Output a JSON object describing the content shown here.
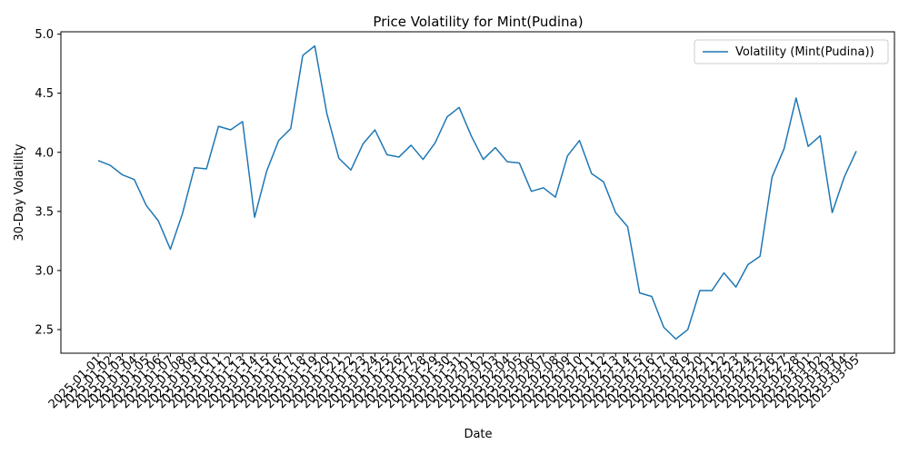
{
  "chart_data": {
    "type": "line",
    "title": "Price Volatility for Mint(Pudina)",
    "xlabel": "Date",
    "ylabel": "30-Day Volatility",
    "ylim": [
      2.3,
      5.02
    ],
    "yticks": [
      "2.5",
      "3.0",
      "3.5",
      "4.0",
      "4.5",
      "5.0"
    ],
    "grid": false,
    "legend_position": "top-right",
    "colors": {
      "series": "#1f77b4"
    },
    "x": [
      "2025-01-01",
      "2025-01-02",
      "2025-01-03",
      "2025-01-04",
      "2025-01-05",
      "2025-01-06",
      "2025-01-07",
      "2025-01-08",
      "2025-01-09",
      "2025-01-10",
      "2025-01-11",
      "2025-01-12",
      "2025-01-13",
      "2025-01-14",
      "2025-01-15",
      "2025-01-16",
      "2025-01-17",
      "2025-01-18",
      "2025-01-19",
      "2025-01-20",
      "2025-01-21",
      "2025-01-22",
      "2025-01-23",
      "2025-01-24",
      "2025-01-25",
      "2025-01-26",
      "2025-01-27",
      "2025-01-28",
      "2025-01-29",
      "2025-01-30",
      "2025-01-31",
      "2025-02-01",
      "2025-02-02",
      "2025-02-03",
      "2025-02-04",
      "2025-02-05",
      "2025-02-06",
      "2025-02-07",
      "2025-02-08",
      "2025-02-09",
      "2025-02-10",
      "2025-02-11",
      "2025-02-12",
      "2025-02-13",
      "2025-02-14",
      "2025-02-15",
      "2025-02-16",
      "2025-02-17",
      "2025-02-18",
      "2025-02-19",
      "2025-02-20",
      "2025-02-21",
      "2025-02-22",
      "2025-02-23",
      "2025-02-24",
      "2025-02-25",
      "2025-02-26",
      "2025-02-27",
      "2025-02-28",
      "2025-03-01",
      "2025-03-02",
      "2025-03-03",
      "2025-03-04",
      "2025-03-05"
    ],
    "series": [
      {
        "name": "Volatility (Mint(Pudina))",
        "values": [
          3.93,
          3.89,
          3.81,
          3.77,
          3.55,
          3.42,
          3.18,
          3.48,
          3.87,
          3.86,
          4.22,
          4.19,
          4.26,
          3.45,
          3.84,
          4.1,
          4.2,
          4.82,
          4.9,
          4.33,
          3.95,
          3.85,
          4.07,
          4.19,
          3.98,
          3.96,
          4.06,
          3.94,
          4.08,
          4.3,
          4.38,
          4.14,
          3.94,
          4.04,
          3.92,
          3.91,
          3.67,
          3.7,
          3.62,
          3.97,
          4.1,
          3.82,
          3.75,
          3.49,
          3.37,
          2.81,
          2.78,
          2.52,
          2.42,
          2.5,
          2.83,
          2.83,
          2.98,
          2.86,
          3.05,
          3.12,
          3.79,
          4.03,
          4.46,
          4.05,
          4.14,
          3.49,
          3.79,
          4.01
        ]
      }
    ]
  }
}
